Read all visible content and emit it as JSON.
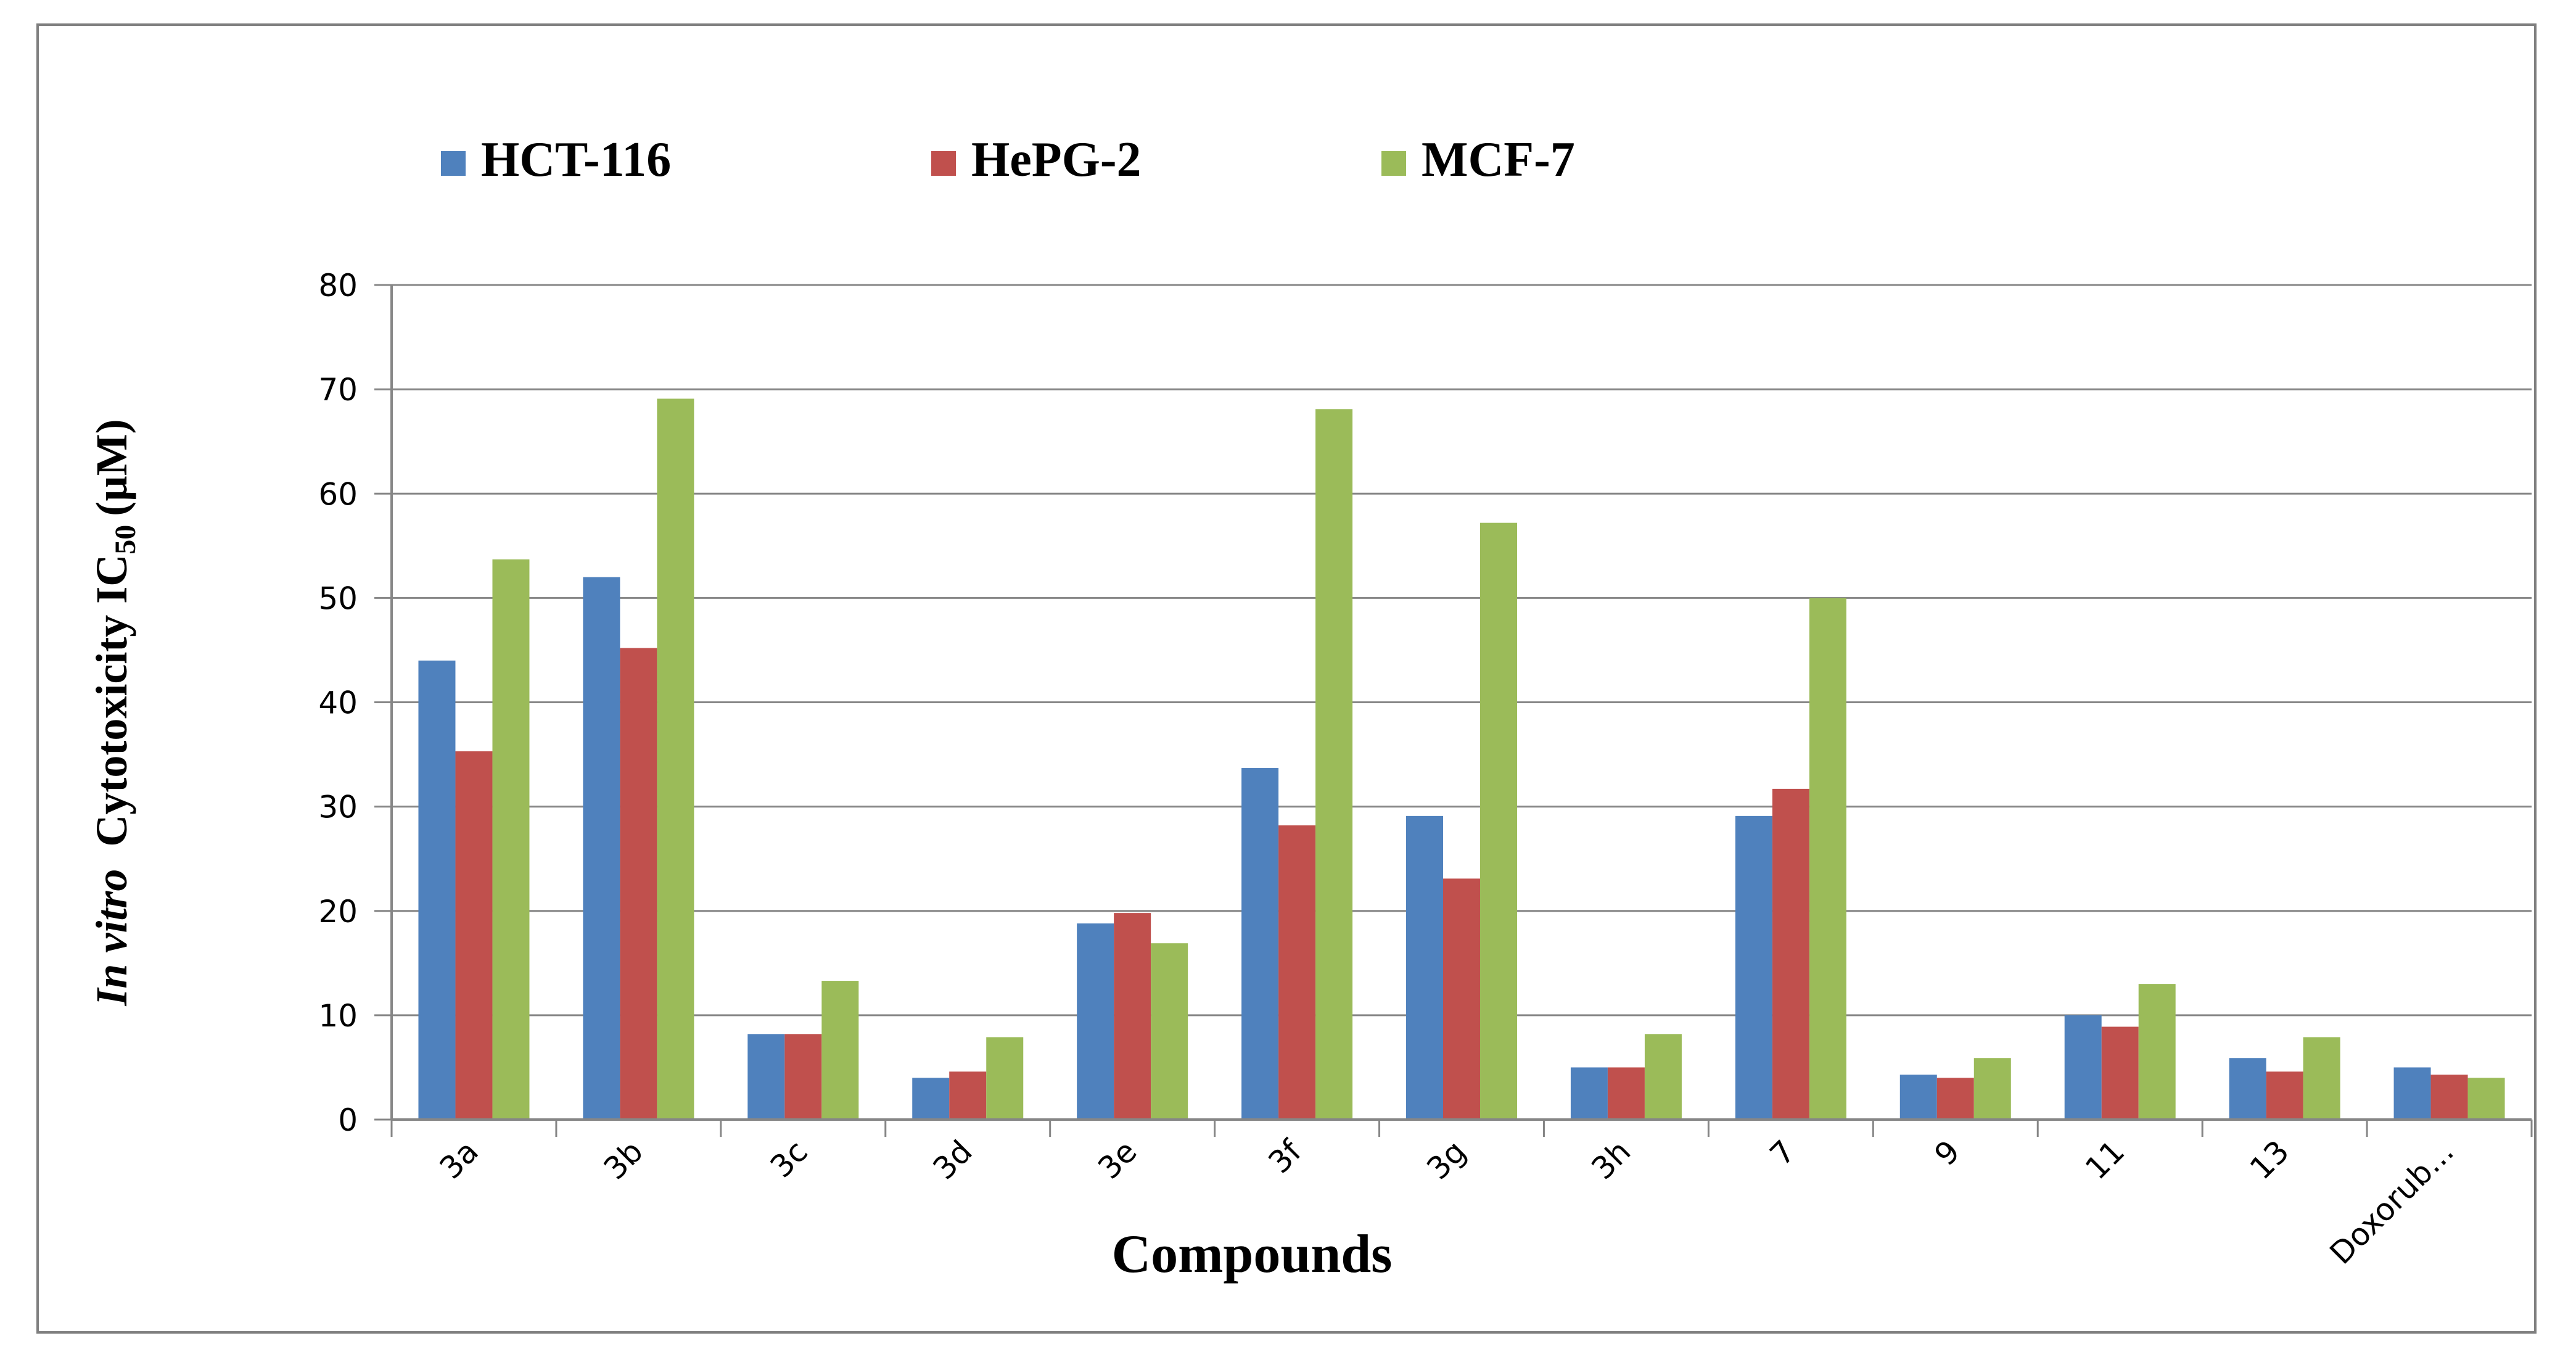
{
  "chart_data": {
    "type": "bar",
    "title": "",
    "xlabel": "Compounds",
    "ylabel": {
      "italic": "In vitro",
      "main": "Cytotoxicity IC",
      "subscript": "50",
      "unit": "(µM)"
    },
    "categories": [
      "3a",
      "3b",
      "3c",
      "3d",
      "3e",
      "3f",
      "3g",
      "3h",
      "7",
      "9",
      "11",
      "13",
      "Doxorub..."
    ],
    "series": [
      {
        "name": "HCT-116",
        "color": "#4F81BD",
        "values": [
          44,
          52,
          8.2,
          4,
          18.8,
          33.7,
          29.1,
          5,
          29.1,
          4.3,
          10,
          5.9,
          5
        ]
      },
      {
        "name": "HePG-2",
        "color": "#C0504D",
        "values": [
          35.3,
          45.2,
          8.2,
          4.6,
          19.8,
          28.2,
          23.1,
          5,
          31.7,
          4,
          8.9,
          4.6,
          4.3
        ]
      },
      {
        "name": "MCF-7",
        "color": "#9BBB59",
        "values": [
          53.7,
          69.1,
          13.3,
          7.9,
          16.9,
          68.1,
          57.2,
          8.2,
          50,
          5.9,
          13,
          7.9,
          4
        ]
      }
    ],
    "ylim": [
      0,
      80
    ],
    "yticks": [
      0,
      10,
      20,
      30,
      40,
      50,
      60,
      70,
      80
    ],
    "grid": true,
    "legend_position": "top-left"
  }
}
